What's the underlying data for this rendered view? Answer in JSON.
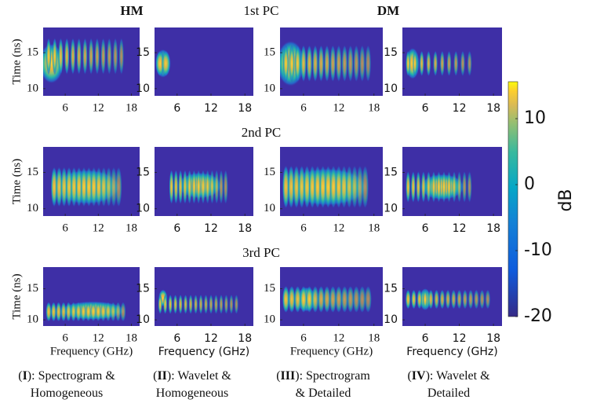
{
  "header": {
    "left": "HM",
    "right": "DM"
  },
  "row_titles": [
    "1st PC",
    "2nd PC",
    "3rd PC"
  ],
  "chart_data": [
    {
      "type": "heatmap",
      "xlim": [
        2,
        19.5
      ],
      "ylim": [
        9,
        18.5
      ],
      "xticks": [
        6,
        12,
        18
      ],
      "yticks": [
        10,
        15
      ],
      "ylabel": "Time (ns)"
    },
    {
      "type": "heatmap",
      "xlim": [
        2,
        19.5
      ],
      "ylim": [
        9,
        18.5
      ],
      "xticks": [
        6,
        12,
        18
      ],
      "yticks": [
        10,
        15
      ]
    },
    {
      "type": "heatmap",
      "xlim": [
        2,
        19.5
      ],
      "ylim": [
        9,
        18.5
      ],
      "xticks": [
        6,
        12,
        18
      ],
      "yticks": [
        10,
        15
      ]
    },
    {
      "type": "heatmap",
      "xlim": [
        2,
        19.5
      ],
      "ylim": [
        9,
        18.5
      ],
      "xticks": [
        6,
        12,
        18
      ],
      "yticks": [
        10,
        15
      ]
    },
    {
      "type": "heatmap",
      "xlim": [
        2,
        19.5
      ],
      "ylim": [
        9,
        18.5
      ],
      "xticks": [
        6,
        12,
        18
      ],
      "yticks": [
        10,
        15
      ],
      "ylabel": "Time (ns)"
    },
    {
      "type": "heatmap",
      "xlim": [
        2,
        19.5
      ],
      "ylim": [
        9,
        18.5
      ],
      "xticks": [
        6,
        12,
        18
      ],
      "yticks": [
        10,
        15
      ]
    },
    {
      "type": "heatmap",
      "xlim": [
        2,
        19.5
      ],
      "ylim": [
        9,
        18.5
      ],
      "xticks": [
        6,
        12,
        18
      ],
      "yticks": [
        10,
        15
      ]
    },
    {
      "type": "heatmap",
      "xlim": [
        2,
        19.5
      ],
      "ylim": [
        9,
        18.5
      ],
      "xticks": [
        6,
        12,
        18
      ],
      "yticks": [
        10,
        15
      ]
    },
    {
      "type": "heatmap",
      "xlim": [
        2,
        19.5
      ],
      "ylim": [
        9,
        18.5
      ],
      "xticks": [
        6,
        12,
        18
      ],
      "yticks": [
        10,
        15
      ],
      "ylabel": "Time (ns)",
      "xlabel": "Frequency (GHz)"
    },
    {
      "type": "heatmap",
      "xlim": [
        2,
        19.5
      ],
      "ylim": [
        9,
        18.5
      ],
      "xticks": [
        6,
        12,
        18
      ],
      "yticks": [
        10,
        15
      ],
      "xlabel": "Frequency (GHz)"
    },
    {
      "type": "heatmap",
      "xlim": [
        2,
        19.5
      ],
      "ylim": [
        9,
        18.5
      ],
      "xticks": [
        6,
        12,
        18
      ],
      "yticks": [
        10,
        15
      ],
      "xlabel": "Frequency (GHz)"
    },
    {
      "type": "heatmap",
      "xlim": [
        2,
        19.5
      ],
      "ylim": [
        9,
        18.5
      ],
      "xticks": [
        6,
        12,
        18
      ],
      "yticks": [
        10,
        15
      ],
      "xlabel": "Frequency (GHz)"
    }
  ],
  "colorbar": {
    "label": "dB",
    "lim": [
      -20,
      15.6
    ],
    "ticks": [
      -20,
      -10,
      0,
      10
    ]
  },
  "captions": [
    [
      [
        "(",
        "I",
        "): Spectrogram &"
      ],
      [
        "Homogeneous"
      ]
    ],
    [
      [
        "(",
        "II",
        "): Wavelet &"
      ],
      [
        "Homogeneous"
      ]
    ],
    [
      [
        "(",
        "III",
        "): Spectrogram"
      ],
      [
        "& Detailed"
      ]
    ],
    [
      [
        "(",
        "IV",
        "): Wavelet &"
      ],
      [
        "Detailed"
      ]
    ]
  ]
}
